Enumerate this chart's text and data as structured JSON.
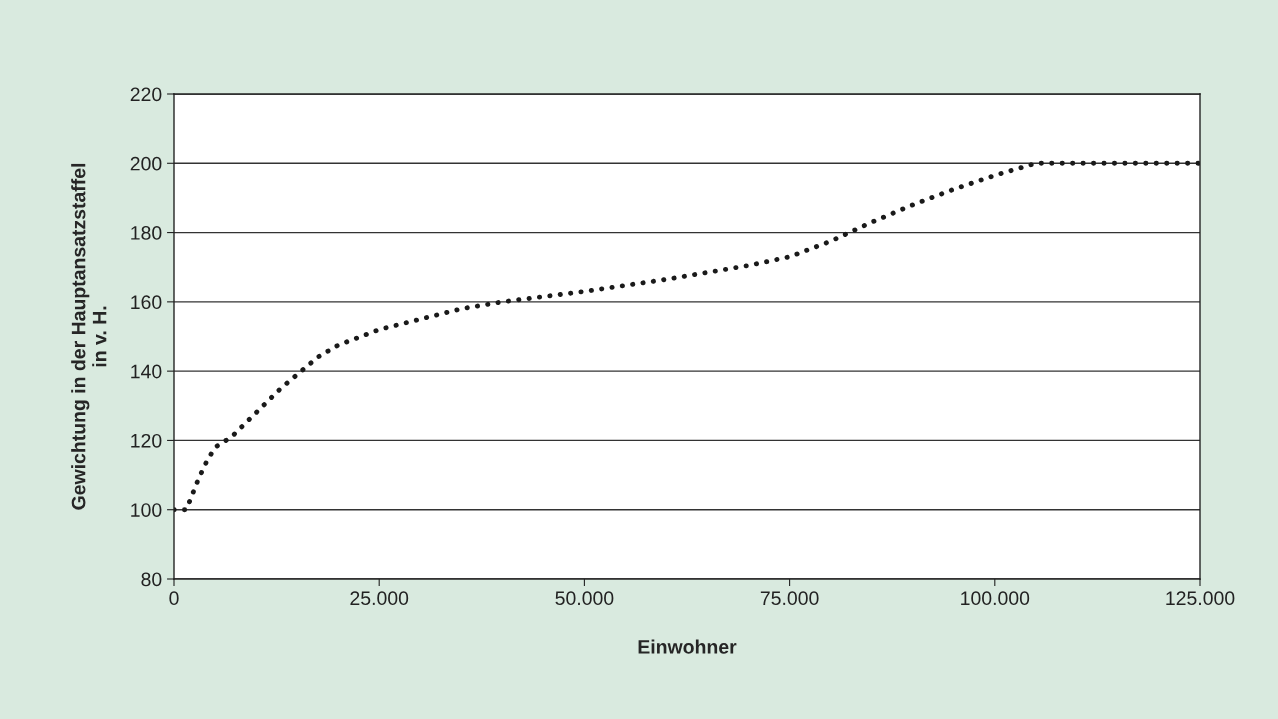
{
  "chart_data": {
    "type": "line",
    "xlabel": "Einwohner",
    "ylabel": "Gewichtung in der Hauptansatzstaffel\nin v. H.",
    "x": [
      0,
      1500,
      3000,
      4000,
      5000,
      7000,
      10000,
      13000,
      15000,
      17500,
      20000,
      25000,
      30000,
      35000,
      40000,
      50000,
      60000,
      70000,
      75000,
      80000,
      85000,
      90000,
      95000,
      100000,
      105000,
      125000
    ],
    "series": [
      {
        "color": "#1a1a1a",
        "values": [
          100,
          100,
          109,
          114,
          118,
          121,
          128,
          135,
          139,
          144,
          147.5,
          152,
          155,
          158,
          160,
          163,
          166.5,
          170.5,
          173,
          177.5,
          183,
          188,
          192.5,
          196.5,
          200,
          200
        ]
      }
    ],
    "xlim": [
      0,
      125000
    ],
    "xticks": [
      0,
      {
        "value": 25000,
        "label": "25.000"
      },
      {
        "value": 50000,
        "label": "50.000"
      },
      {
        "value": 75000,
        "label": "75.000"
      },
      {
        "value": 100000,
        "label": "100.000"
      },
      {
        "value": 125000,
        "label": "125.000"
      }
    ],
    "ylim": [
      80,
      220
    ],
    "yticks": [
      80,
      100,
      120,
      140,
      160,
      180,
      200,
      220
    ],
    "grid": "y",
    "line_style": "dotted",
    "marker": "none"
  }
}
